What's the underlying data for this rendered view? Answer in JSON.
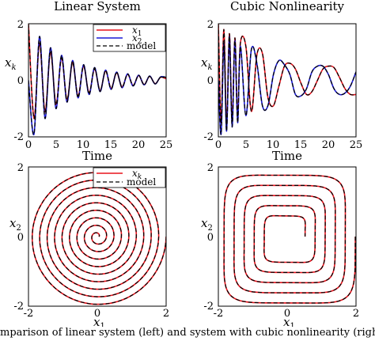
{
  "caption": "mparison of linear system (left) and system with cubic nonlinearity (right). Th",
  "chart_data": [
    {
      "type": "line",
      "title": "Linear System",
      "xlabel": "Time",
      "ylabel_main": "x",
      "ylabel_sub": "k",
      "xlim": [
        0,
        25
      ],
      "ylim": [
        -2,
        2
      ],
      "xticks": [
        "0",
        "5",
        "10",
        "15",
        "20",
        "25"
      ],
      "yticks": [
        "2",
        "0",
        "-2"
      ],
      "legend_position": "top-right",
      "legend": [
        {
          "main": "x",
          "sub": "1",
          "color": "#e8131c",
          "dash": false
        },
        {
          "main": "x",
          "sub": "2",
          "color": "#1a1ad6",
          "dash": false
        },
        {
          "main": "model",
          "sub": "",
          "color": "#000000",
          "dash": true
        }
      ],
      "x": [
        0,
        1,
        2,
        3,
        4,
        5,
        6,
        7,
        8,
        9,
        10,
        11,
        12,
        13,
        14,
        15,
        16,
        17,
        18,
        19,
        20,
        21,
        22,
        23,
        24,
        25
      ],
      "series": [
        {
          "name": "x1",
          "color": "#e8131c",
          "values": [
            2.0,
            -1.35,
            1.32,
            -1.12,
            1.0,
            -0.85,
            0.79,
            -0.68,
            0.62,
            -0.55,
            0.5,
            -0.44,
            0.4,
            -0.36,
            0.32,
            -0.28,
            0.26,
            -0.23,
            0.21,
            -0.18,
            0.17,
            -0.15,
            0.14,
            -0.12,
            0.11,
            0.05
          ]
        },
        {
          "name": "x2",
          "color": "#1a1ad6",
          "values": [
            0.0,
            -1.9,
            1.55,
            -1.35,
            1.15,
            -1.0,
            0.88,
            -0.77,
            0.7,
            -0.62,
            0.55,
            -0.5,
            0.45,
            -0.4,
            0.36,
            -0.32,
            0.29,
            -0.26,
            0.23,
            -0.2,
            0.18,
            -0.16,
            0.15,
            -0.13,
            0.12,
            0.1
          ]
        }
      ]
    },
    {
      "type": "line",
      "title": "Cubic Nonlinearity",
      "xlabel": "Time",
      "ylabel_main": "x",
      "ylabel_sub": "k",
      "xlim": [
        0,
        25
      ],
      "ylim": [
        -2,
        2
      ],
      "xticks": [
        "0",
        "5",
        "10",
        "15",
        "20",
        "25"
      ],
      "yticks": [
        "2",
        "0",
        "-2"
      ],
      "x": [
        0,
        0.5,
        1,
        1.5,
        2,
        2.5,
        3,
        3.5,
        4,
        5,
        6,
        7,
        8,
        9,
        10,
        11,
        12,
        13,
        14,
        15,
        16,
        17,
        18,
        19,
        20,
        21,
        22,
        23,
        24,
        25
      ],
      "series": [
        {
          "name": "x1",
          "color": "#e8131c",
          "values": [
            2.0,
            -1.5,
            1.8,
            -1.6,
            1.65,
            -1.45,
            1.5,
            -1.3,
            1.3,
            1.2,
            -1.1,
            0.9,
            0.95,
            -0.6,
            -0.9,
            -0.2,
            0.5,
            0.6,
            0.4,
            -0.1,
            -0.5,
            -0.4,
            0.0,
            0.4,
            0.5,
            0.45,
            0.1,
            -0.3,
            -0.5,
            -0.5
          ]
        },
        {
          "name": "x2",
          "color": "#1a1ad6",
          "values": [
            0.0,
            -1.9,
            1.3,
            -1.8,
            1.55,
            -1.65,
            1.4,
            -1.5,
            1.2,
            -1.25,
            1.1,
            0.6,
            -0.9,
            -0.9,
            0.2,
            0.7,
            0.55,
            0.2,
            -0.5,
            -0.55,
            -0.3,
            0.3,
            0.5,
            0.5,
            0.2,
            -0.3,
            -0.5,
            -0.45,
            -0.2,
            0.3
          ]
        }
      ]
    },
    {
      "type": "line",
      "title": "",
      "xlabel_main": "x",
      "xlabel_sub": "1",
      "ylabel_main": "x",
      "ylabel_sub": "2",
      "xlim": [
        -2,
        2
      ],
      "ylim": [
        -2,
        2
      ],
      "xticks": [
        "-2",
        "0",
        "2"
      ],
      "yticks": [
        "2",
        "0",
        "-2"
      ],
      "legend_position": "top-right",
      "legend": [
        {
          "main": "x",
          "sub": "k",
          "color": "#e8131c",
          "dash": false
        },
        {
          "main": "model",
          "sub": "",
          "color": "#000000",
          "dash": true
        }
      ],
      "trajectory": "inward spiral from (2, 0) to (0, 0), about 9 turns"
    },
    {
      "type": "line",
      "title": "",
      "xlabel_main": "x",
      "xlabel_sub": "1",
      "ylabel_main": "x",
      "ylabel_sub": "2",
      "xlim": [
        -2,
        2
      ],
      "ylim": [
        -2,
        2
      ],
      "xticks": [
        "-2",
        "0",
        "2"
      ],
      "yticks": [
        "2",
        "0",
        "-2"
      ],
      "trajectory": "inward rounded-square spiral from (2, 0) to about radius 0.5, about 5 turns"
    }
  ]
}
